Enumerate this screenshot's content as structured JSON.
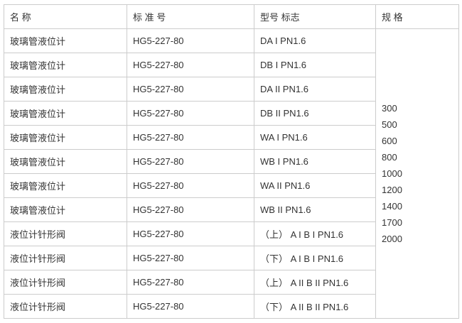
{
  "page": {
    "background_color": "#ffffff",
    "border_color": "#cccccc",
    "text_color": "#333333"
  },
  "table": {
    "headers": {
      "name": "名 称",
      "standard": "标 准 号",
      "model": "型号 标志",
      "spec": "规 格"
    },
    "rows": [
      {
        "name": "玻璃管液位计",
        "standard": "HG5-227-80",
        "model": "DA I PN1.6"
      },
      {
        "name": "玻璃管液位计",
        "standard": "HG5-227-80",
        "model": "DB I PN1.6"
      },
      {
        "name": "玻璃管液位计",
        "standard": "HG5-227-80",
        "model": "DA II PN1.6"
      },
      {
        "name": "玻璃管液位计",
        "standard": "HG5-227-80",
        "model": "DB II PN1.6"
      },
      {
        "name": "玻璃管液位计",
        "standard": "HG5-227-80",
        "model": "WA I PN1.6"
      },
      {
        "name": "玻璃管液位计",
        "standard": "HG5-227-80",
        "model": "WB I PN1.6"
      },
      {
        "name": "玻璃管液位计",
        "standard": "HG5-227-80",
        "model": "WA II PN1.6"
      },
      {
        "name": "玻璃管液位计",
        "standard": "HG5-227-80",
        "model": "WB II PN1.6"
      },
      {
        "name": "液位计针形阀",
        "standard": "HG5-227-80",
        "model": "（上） A I B I PN1.6"
      },
      {
        "name": "液位计针形阀",
        "standard": "HG5-227-80",
        "model": "（下） A I B I PN1.6"
      },
      {
        "name": "液位计针形阀",
        "standard": "HG5-227-80",
        "model": "（上） A II B II PN1.6"
      },
      {
        "name": "液位计针形阀",
        "standard": "HG5-227-80",
        "model": "（下） A II B II PN1.6"
      }
    ],
    "specs": [
      "300",
      "500",
      "600",
      "800",
      "1000",
      "1200",
      "1400",
      "1700",
      "2000"
    ]
  }
}
